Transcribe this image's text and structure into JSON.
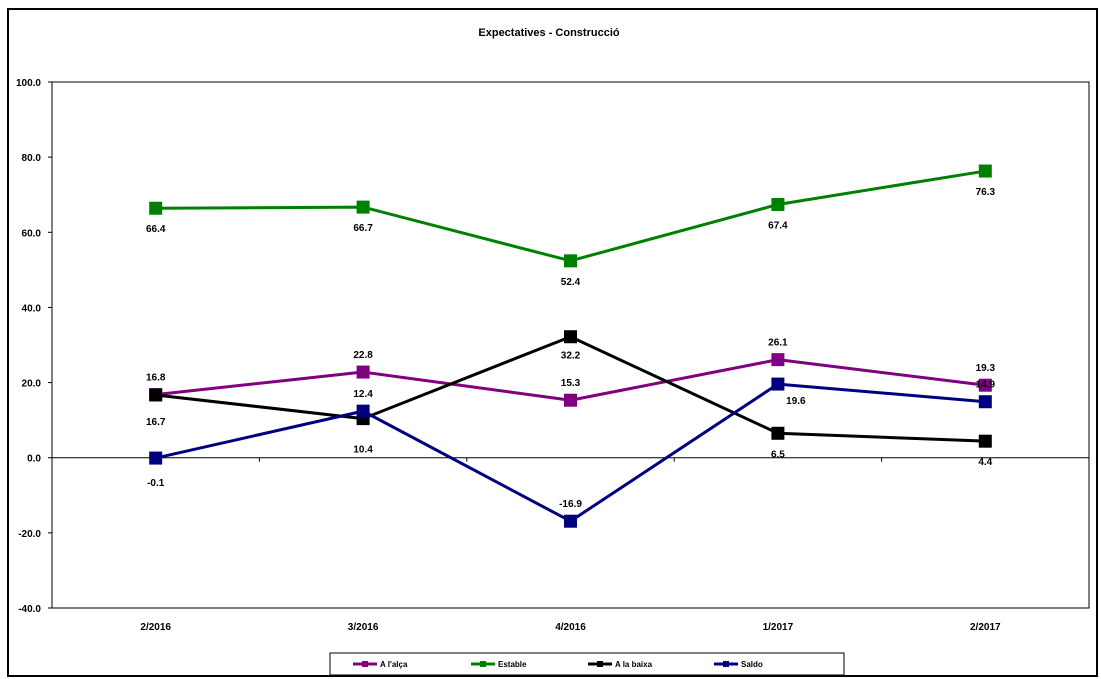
{
  "chart_data": {
    "type": "line",
    "title": "Expectatives - Construcció",
    "categories": [
      "2/2016",
      "3/2016",
      "4/2016",
      "1/2017",
      "2/2017"
    ],
    "ylim": [
      -40,
      100
    ],
    "yticks": [
      100,
      80,
      60,
      40,
      20,
      0,
      -20,
      -40
    ],
    "ytick_labels": [
      "100.0",
      "80.0",
      "60.0",
      "40.0",
      "20.0",
      "0.0",
      "-20.0",
      "-40.0"
    ],
    "xlabel": "",
    "ylabel": "",
    "grid": false,
    "legend_position": "bottom",
    "series": [
      {
        "name": "A l'alça",
        "color": "#800080",
        "values": [
          16.8,
          22.8,
          15.3,
          26.1,
          19.3
        ],
        "labels": [
          "16.8",
          "22.8",
          "15.3",
          "26.1",
          "19.3"
        ]
      },
      {
        "name": "Estable",
        "color": "#008000",
        "values": [
          66.4,
          66.7,
          52.4,
          67.4,
          76.3
        ],
        "labels": [
          "66.4",
          "66.7",
          "52.4",
          "67.4",
          "76.3"
        ]
      },
      {
        "name": "A la baixa",
        "color": "#000000",
        "values": [
          16.7,
          10.4,
          32.2,
          6.5,
          4.4
        ],
        "labels": [
          "16.7",
          "10.4",
          "32.2",
          "6.5",
          "4.4"
        ]
      },
      {
        "name": "Saldo",
        "color": "#000080",
        "values": [
          -0.1,
          12.4,
          -16.9,
          19.6,
          14.9
        ],
        "labels": [
          "-0.1",
          "12.4",
          "-16.9",
          "19.6",
          "14.9"
        ]
      }
    ]
  }
}
